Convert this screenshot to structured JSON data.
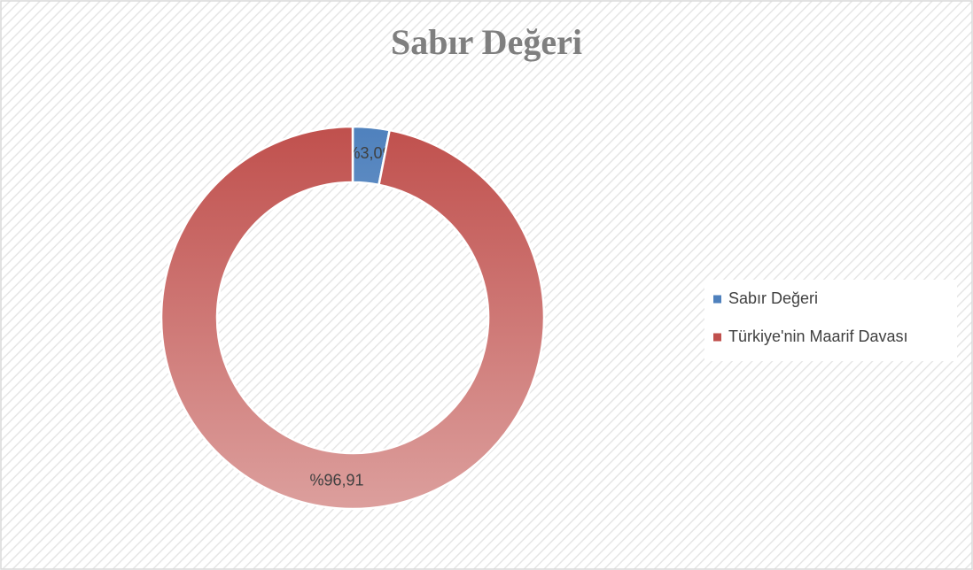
{
  "chart_data": {
    "type": "donut",
    "title": "Sabır Değeri",
    "categories": [
      "Sabır Değeri",
      "Türkiye'nin Maarif Davası"
    ],
    "values": [
      3.09,
      96.91
    ],
    "value_labels": [
      "%3,09",
      "%96,91"
    ],
    "colors": [
      "#4f81bd",
      "#c0504d"
    ],
    "legend": "right"
  }
}
